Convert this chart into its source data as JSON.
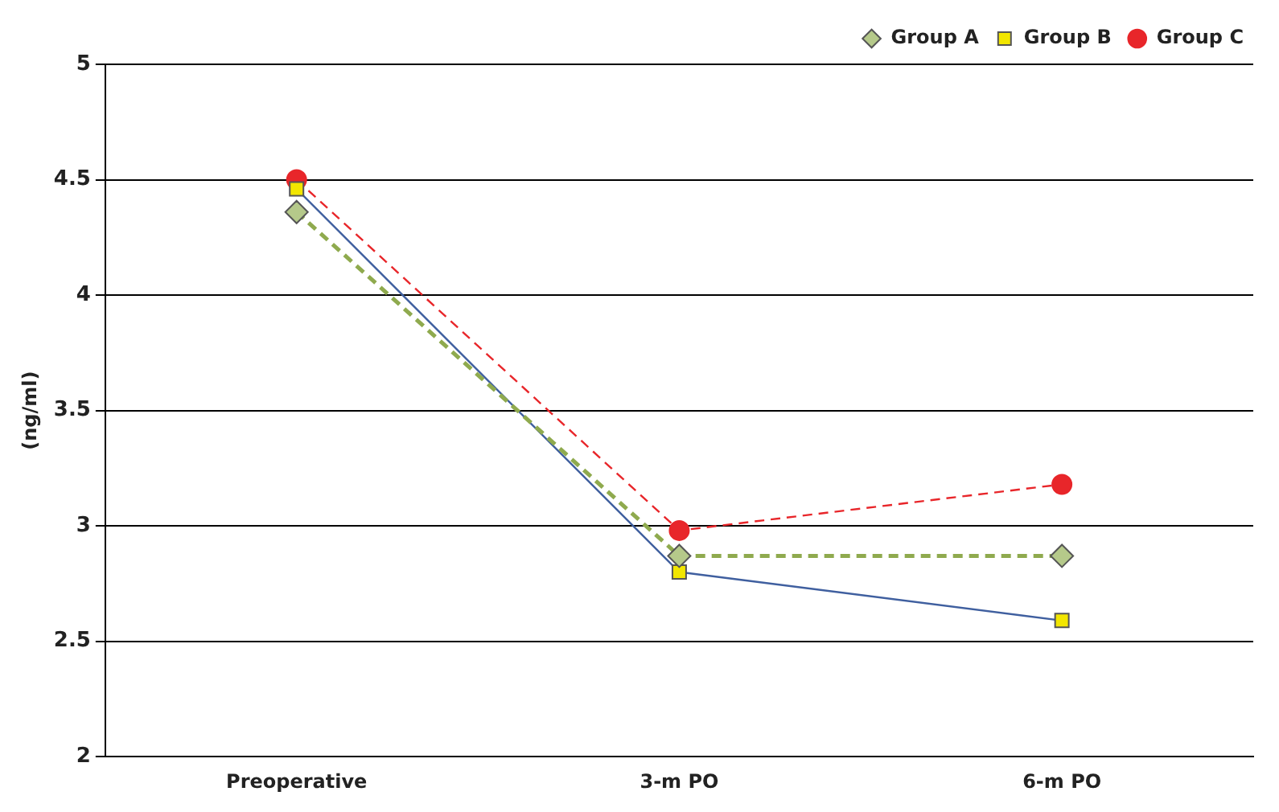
{
  "chart_data": {
    "type": "line",
    "ylabel": "(ng/ml)",
    "categories": [
      "Preoperative",
      "3-m PO",
      "6-m PO"
    ],
    "series": [
      {
        "name": "Group A",
        "color": "#8faa4e",
        "values": [
          4.36,
          2.87,
          2.87
        ],
        "marker": "diamond",
        "line_style": "dashed"
      },
      {
        "name": "Group B",
        "color": "#3f5f9f",
        "values": [
          4.46,
          2.8,
          2.59
        ],
        "marker": "square",
        "line_style": "solid"
      },
      {
        "name": "Group C",
        "color": "#e8262a",
        "values": [
          4.5,
          2.98,
          3.18
        ],
        "marker": "circle",
        "line_style": "dashed"
      }
    ],
    "ylim": [
      2,
      5
    ],
    "yticks": [
      2,
      2.5,
      3,
      3.5,
      4,
      4.5,
      5
    ],
    "grid": "y",
    "legend": "top right"
  }
}
